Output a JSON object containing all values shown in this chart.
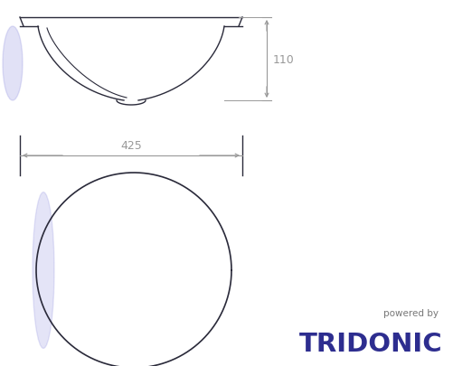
{
  "bg_color": "#ffffff",
  "line_color": "#2a2a3a",
  "dim_color": "#999999",
  "tridonic_color": "#2d2d8f",
  "powered_by_color": "#777777",
  "dim_110": "110",
  "dim_425": "425",
  "tridonic_text": "TRIDONIC",
  "powered_by_text": "powered by",
  "fig_width": 5.01,
  "fig_height": 4.06,
  "dpi": 100,
  "glow_color": "#8888dd"
}
